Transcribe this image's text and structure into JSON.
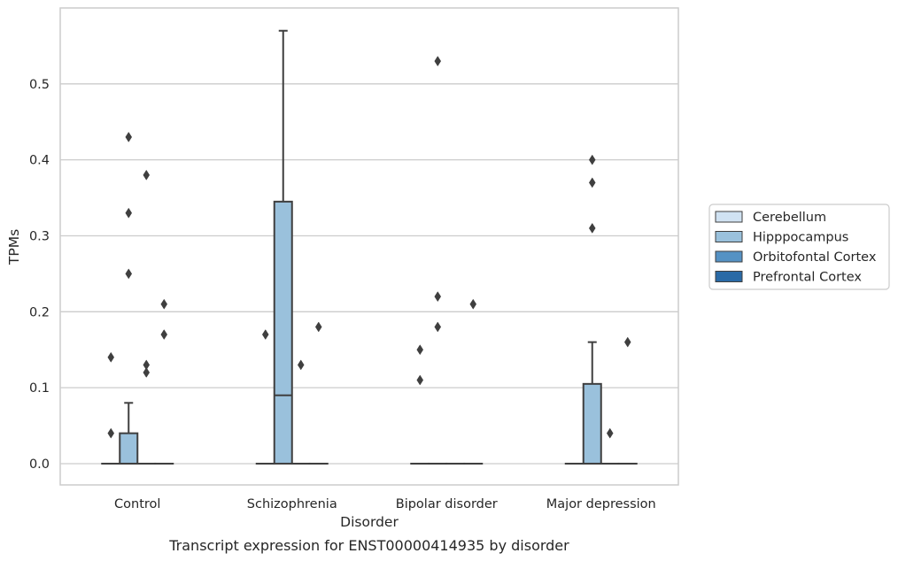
{
  "caption": "Transcript expression for ENST00000414935 by disorder",
  "chart_data": {
    "type": "box",
    "xlabel": "Disorder",
    "ylabel": "TPMs",
    "ylim": [
      -0.028,
      0.6
    ],
    "yticks": [
      "0.0",
      "0.1",
      "0.2",
      "0.3",
      "0.4",
      "0.5"
    ],
    "ytick_values": [
      0.0,
      0.1,
      0.2,
      0.3,
      0.4,
      0.5
    ],
    "grid": "horizontal",
    "legend_position": "right",
    "categories": [
      "Control",
      "Schizophrenia",
      "Bipolar disorder",
      "Major depression"
    ],
    "series": [
      {
        "name": "Cerebellum",
        "color": "#d0e2f2",
        "boxes": [
          {
            "q1": 0,
            "median": 0,
            "q3": 0,
            "whisker_low": 0,
            "whisker_high": 0,
            "outliers": [
              0.04,
              0.14
            ]
          },
          {
            "q1": 0,
            "median": 0,
            "q3": 0,
            "whisker_low": 0,
            "whisker_high": 0,
            "outliers": [
              0.17
            ]
          },
          {
            "q1": 0,
            "median": 0,
            "q3": 0,
            "whisker_low": 0,
            "whisker_high": 0,
            "outliers": [
              0.11,
              0.15
            ]
          },
          {
            "q1": 0,
            "median": 0,
            "q3": 0,
            "whisker_low": 0,
            "whisker_high": 0,
            "outliers": []
          }
        ]
      },
      {
        "name": "Hipppocampus",
        "color": "#9ac1dc",
        "boxes": [
          {
            "q1": 0,
            "median": 0,
            "q3": 0.04,
            "whisker_low": 0,
            "whisker_high": 0.08,
            "outliers": [
              0.25,
              0.33,
              0.43
            ]
          },
          {
            "q1": 0,
            "median": 0.09,
            "q3": 0.345,
            "whisker_low": 0,
            "whisker_high": 0.57,
            "outliers": []
          },
          {
            "q1": 0,
            "median": 0,
            "q3": 0,
            "whisker_low": 0,
            "whisker_high": 0,
            "outliers": [
              0.18,
              0.22,
              0.53
            ]
          },
          {
            "q1": 0,
            "median": 0,
            "q3": 0.105,
            "whisker_low": 0,
            "whisker_high": 0.16,
            "outliers": [
              0.31,
              0.37,
              0.4
            ]
          }
        ]
      },
      {
        "name": "Orbitofontal Cortex",
        "color": "#5592c4",
        "boxes": [
          {
            "q1": 0,
            "median": 0,
            "q3": 0,
            "whisker_low": 0,
            "whisker_high": 0,
            "outliers": [
              0.12,
              0.13,
              0.38
            ]
          },
          {
            "q1": 0,
            "median": 0,
            "q3": 0,
            "whisker_low": 0,
            "whisker_high": 0,
            "outliers": [
              0.13
            ]
          },
          {
            "q1": 0,
            "median": 0,
            "q3": 0,
            "whisker_low": 0,
            "whisker_high": 0,
            "outliers": []
          },
          {
            "q1": 0,
            "median": 0,
            "q3": 0,
            "whisker_low": 0,
            "whisker_high": 0,
            "outliers": [
              0.04
            ]
          }
        ]
      },
      {
        "name": "Prefrontal Cortex",
        "color": "#2a6aa6",
        "boxes": [
          {
            "q1": 0,
            "median": 0,
            "q3": 0,
            "whisker_low": 0,
            "whisker_high": 0,
            "outliers": [
              0.17,
              0.21
            ]
          },
          {
            "q1": 0,
            "median": 0,
            "q3": 0,
            "whisker_low": 0,
            "whisker_high": 0,
            "outliers": [
              0.18
            ]
          },
          {
            "q1": 0,
            "median": 0,
            "q3": 0,
            "whisker_low": 0,
            "whisker_high": 0,
            "outliers": [
              0.21
            ]
          },
          {
            "q1": 0,
            "median": 0,
            "q3": 0,
            "whisker_low": 0,
            "whisker_high": 0,
            "outliers": [
              0.16
            ]
          }
        ]
      }
    ]
  }
}
